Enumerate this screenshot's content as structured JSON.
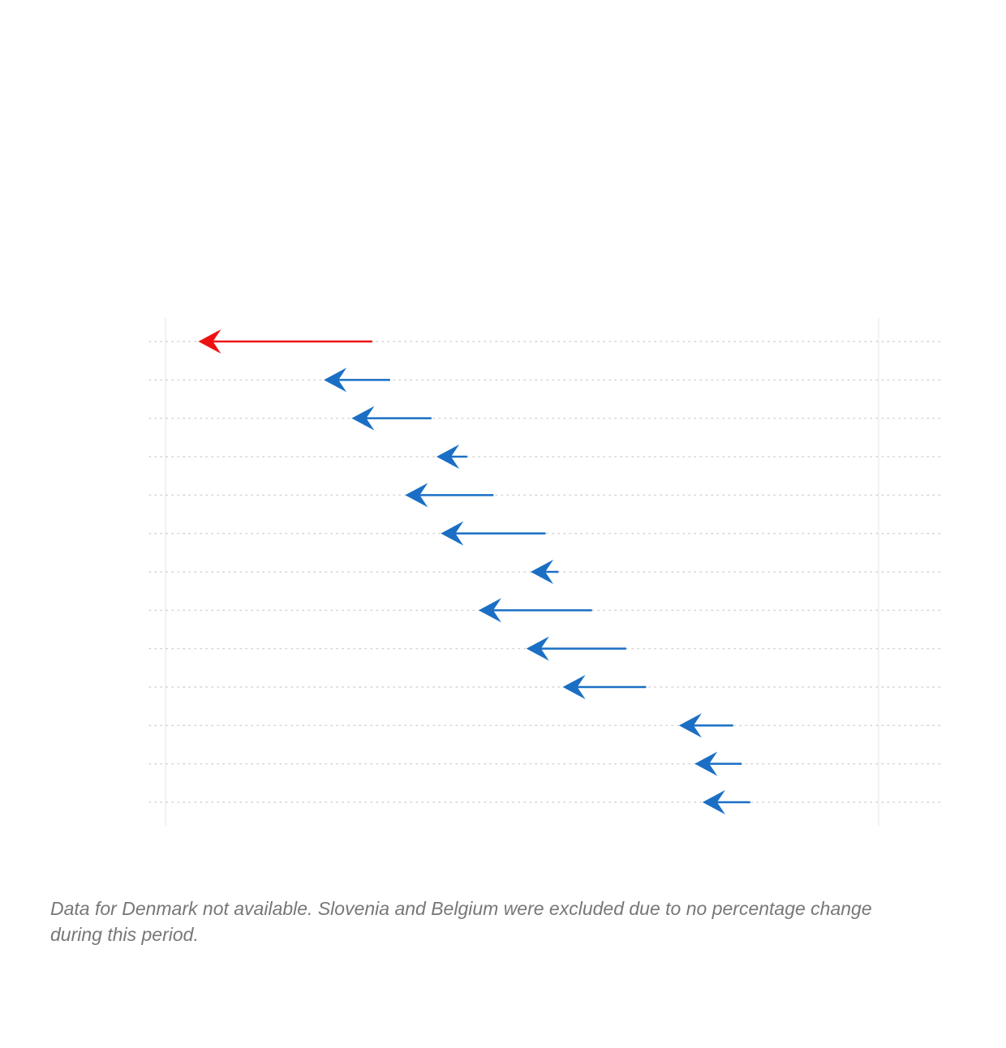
{
  "chart_data": {
    "type": "arrow",
    "title": "",
    "xlabel": "",
    "ylabel": "",
    "xlim": [
      0,
      100
    ],
    "grid": true,
    "colors": {
      "highlight": "#ee1111",
      "default": "#1a6fc4",
      "gridline": "#d4d4d4",
      "axis": "#e4e4e4"
    },
    "series": [
      {
        "from": 29.0,
        "to": 4.6,
        "highlight": true
      },
      {
        "from": 31.5,
        "to": 22.2,
        "highlight": false
      },
      {
        "from": 37.3,
        "to": 26.1,
        "highlight": false
      },
      {
        "from": 42.3,
        "to": 38.0,
        "highlight": false
      },
      {
        "from": 46.0,
        "to": 33.6,
        "highlight": false
      },
      {
        "from": 53.3,
        "to": 38.6,
        "highlight": false
      },
      {
        "from": 55.1,
        "to": 51.2,
        "highlight": false
      },
      {
        "from": 59.8,
        "to": 43.9,
        "highlight": false
      },
      {
        "from": 64.6,
        "to": 50.6,
        "highlight": false
      },
      {
        "from": 67.4,
        "to": 55.7,
        "highlight": false
      },
      {
        "from": 79.6,
        "to": 72.0,
        "highlight": false
      },
      {
        "from": 80.8,
        "to": 74.2,
        "highlight": false
      },
      {
        "from": 82.0,
        "to": 75.3,
        "highlight": false
      }
    ]
  },
  "footnote": "Data for Denmark not available. Slovenia and Belgium were excluded due to no percentage change during this period."
}
